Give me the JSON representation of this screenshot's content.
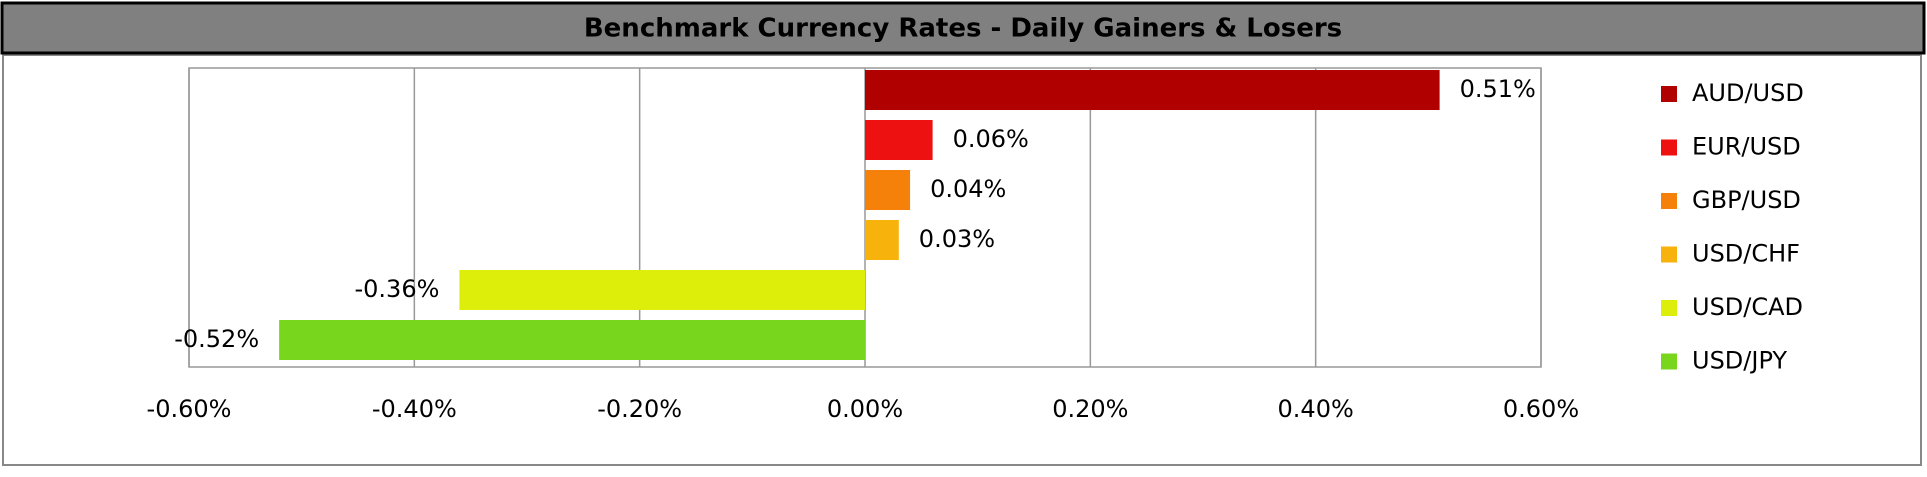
{
  "chart_data": {
    "type": "bar",
    "orientation": "horizontal",
    "title": "Benchmark Currency Rates - Daily Gainers & Losers",
    "series": [
      {
        "name": "AUD/USD",
        "color": "#b00000",
        "values": [
          0.51
        ],
        "value_labels": [
          "0.51%"
        ]
      },
      {
        "name": "EUR/USD",
        "color": "#ee1111",
        "values": [
          0.06
        ],
        "value_labels": [
          "0.06%"
        ]
      },
      {
        "name": "GBP/USD",
        "color": "#f5800a",
        "values": [
          0.04
        ],
        "value_labels": [
          "0.04%"
        ]
      },
      {
        "name": "USD/CHF",
        "color": "#f8b20c",
        "values": [
          0.03
        ],
        "value_labels": [
          "0.03%"
        ]
      },
      {
        "name": "USD/CAD",
        "color": "#dcee0a",
        "values": [
          -0.36
        ],
        "value_labels": [
          "-0.36%"
        ]
      },
      {
        "name": "USD/JPY",
        "color": "#78d61c",
        "values": [
          -0.52
        ],
        "value_labels": [
          "-0.52%"
        ]
      }
    ],
    "xlim": [
      -0.6,
      0.6
    ],
    "xticks": [
      {
        "value": -0.6,
        "label": "-0.60%"
      },
      {
        "value": -0.4,
        "label": "-0.40%"
      },
      {
        "value": -0.2,
        "label": "-0.20%"
      },
      {
        "value": 0,
        "label": "0.00%"
      },
      {
        "value": 0.2,
        "label": "0.20%"
      },
      {
        "value": 0.4,
        "label": "0.40%"
      },
      {
        "value": 0.6,
        "label": "0.60%"
      }
    ],
    "grid": true,
    "legend": "right"
  }
}
